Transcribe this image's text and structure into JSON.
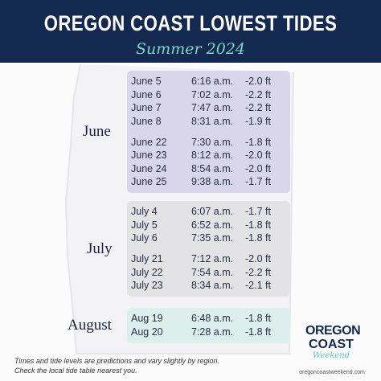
{
  "header": {
    "title": "OREGON COAST LOWEST TIDES",
    "subtitle": "Summer 2024"
  },
  "sections": [
    {
      "month": "June",
      "groups": [
        [
          [
            "June 5",
            "6:16 a.m.",
            "-2.0 ft"
          ],
          [
            "June 6",
            "7:02 a.m.",
            "-2.2 ft"
          ],
          [
            "June 7",
            "7:47 a.m.",
            "-2.2 ft"
          ],
          [
            "June 8",
            "8:31 a.m.",
            "-1.9 ft"
          ]
        ],
        [
          [
            "June 22",
            "7:30 a.m.",
            "-1.8 ft"
          ],
          [
            "June 23",
            "8:12 a.m.",
            "-2.0 ft"
          ],
          [
            "June 24",
            "8:54 a.m.",
            "-2.0 ft"
          ],
          [
            "June 25",
            "9:38 a.m.",
            "-1.7 ft"
          ]
        ]
      ]
    },
    {
      "month": "July",
      "groups": [
        [
          [
            "July 4",
            "6:07 a.m.",
            "-1.7 ft"
          ],
          [
            "July 5",
            "6:52 a.m.",
            "-1.8 ft"
          ],
          [
            "July 6",
            "7:35 a.m.",
            "-1.8 ft"
          ]
        ],
        [
          [
            "July 21",
            "7:12 a.m.",
            "-2.0 ft"
          ],
          [
            "July 22",
            "7:54 a.m.",
            "-2.2 ft"
          ],
          [
            "July 23",
            "8:34 a.m.",
            "-2.1 ft"
          ]
        ]
      ]
    },
    {
      "month": "August",
      "groups": [
        [
          [
            "Aug 19",
            "6:48 a.m.",
            "-1.8 ft"
          ],
          [
            "Aug 20",
            "7:28 a.m.",
            "-1.8 ft"
          ]
        ]
      ]
    }
  ],
  "footer": {
    "lines": [
      "Times and tide levels are predictions and vary slightly by region.",
      "Check the local tide table nearest you."
    ]
  },
  "logo": {
    "line1": "OREGON",
    "line2": "COAST",
    "line3": "Weekend",
    "url": "oregoncoastweekend.com"
  }
}
